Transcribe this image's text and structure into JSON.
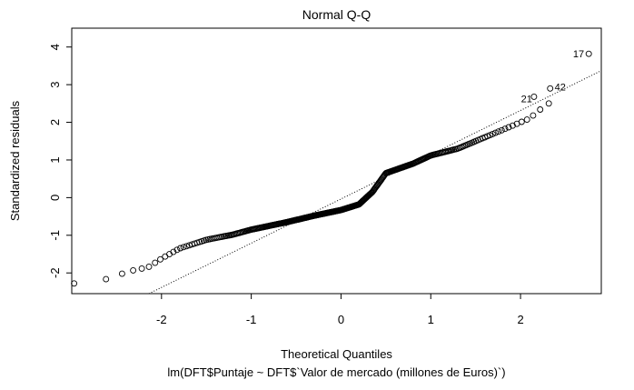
{
  "chart_data": {
    "type": "scatter",
    "title": "Normal Q-Q",
    "xlabel": "Theoretical Quantiles",
    "ylabel": "Standardized residuals",
    "subtitle": "lm(DFT$Puntaje ~ DFT$`Valor de mercado (millones de Euros)`)",
    "xlim": [
      -3.0,
      2.9
    ],
    "ylim": [
      -2.55,
      4.5
    ],
    "xticks": [
      -2,
      -1,
      0,
      1,
      2
    ],
    "yticks": [
      -2,
      -1,
      0,
      1,
      2,
      3,
      4
    ],
    "grid": false,
    "reference_line": {
      "slope": 1.175,
      "intercept": -0.035,
      "style": "dotted"
    },
    "annotations": [
      {
        "text": "17",
        "x": 2.76,
        "y": 3.82
      },
      {
        "text": "21",
        "x": 2.15,
        "y": 2.68
      },
      {
        "text": "42",
        "x": 2.33,
        "y": 2.9
      }
    ]
  }
}
